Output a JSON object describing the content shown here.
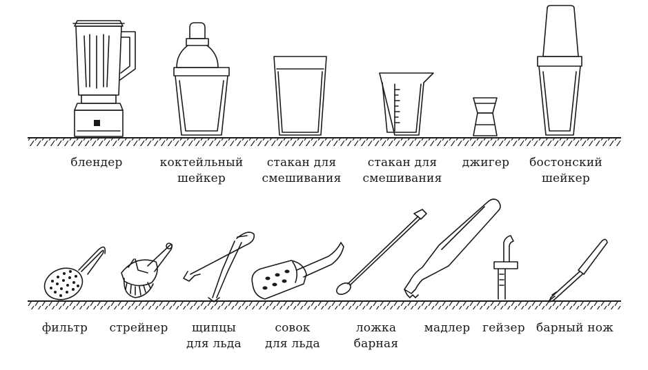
{
  "rows": [
    {
      "tools": [
        {
          "id": "blender",
          "icon": "blender-icon",
          "lines": [
            "блендер"
          ]
        },
        {
          "id": "cocktail-shaker",
          "icon": "cocktail-shaker-icon",
          "lines": [
            "коктейльный",
            "шейкер"
          ]
        },
        {
          "id": "mixing-glass-1",
          "icon": "mixing-glass-icon",
          "lines": [
            "стакан для",
            "смешивания"
          ]
        },
        {
          "id": "mixing-glass-2",
          "icon": "measuring-mixing-glass-icon",
          "lines": [
            "стакан для",
            "смешивания"
          ]
        },
        {
          "id": "jigger",
          "icon": "jigger-icon",
          "lines": [
            "джигер"
          ]
        },
        {
          "id": "boston-shaker",
          "icon": "boston-shaker-icon",
          "lines": [
            "бостонский",
            "шейкер"
          ]
        }
      ]
    },
    {
      "tools": [
        {
          "id": "filter",
          "icon": "julep-strainer-icon",
          "lines": [
            "фильтр"
          ]
        },
        {
          "id": "strainer",
          "icon": "hawthorne-strainer-icon",
          "lines": [
            "стрейнер"
          ]
        },
        {
          "id": "ice-tongs",
          "icon": "ice-tongs-icon",
          "lines": [
            "щипцы",
            "для льда"
          ]
        },
        {
          "id": "ice-scoop",
          "icon": "ice-scoop-icon",
          "lines": [
            "совок",
            "для льда"
          ]
        },
        {
          "id": "bar-spoon",
          "icon": "bar-spoon-icon",
          "lines": [
            "ложка",
            "барная"
          ]
        },
        {
          "id": "muddler",
          "icon": "muddler-icon",
          "lines": [
            "мадлер"
          ]
        },
        {
          "id": "pourer",
          "icon": "pourer-icon",
          "lines": [
            "гейзер"
          ]
        },
        {
          "id": "bar-knife",
          "icon": "bar-knife-icon",
          "lines": [
            "барный нож"
          ]
        }
      ]
    }
  ]
}
